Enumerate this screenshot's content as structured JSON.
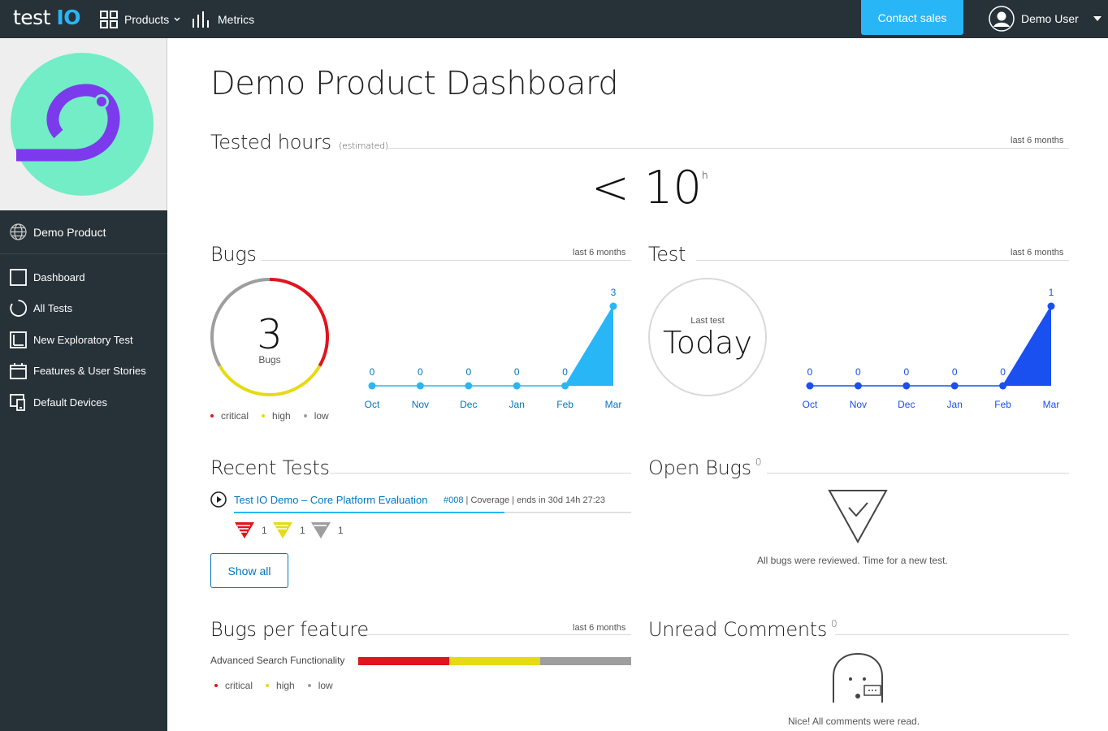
{
  "header": {
    "logo_text": "test",
    "logo_accent": "IO",
    "products_label": "Products",
    "metrics_label": "Metrics",
    "contact_label": "Contact sales",
    "user_name": "Demo User"
  },
  "sidebar": {
    "product_name": "Demo Product",
    "items": [
      {
        "label": "Dashboard",
        "icon": "square-icon"
      },
      {
        "label": "All Tests",
        "icon": "circle-icon"
      },
      {
        "label": "New Exploratory Test",
        "icon": "exploratory-icon"
      },
      {
        "label": "Features & User Stories",
        "icon": "calendar-icon"
      },
      {
        "label": "Default Devices",
        "icon": "devices-icon"
      }
    ]
  },
  "main": {
    "title": "Demo Product Dashboard",
    "tested_hours": {
      "title": "Tested hours",
      "subtitle": "(estimated)",
      "period": "last 6 months",
      "value": "< 10",
      "unit": "h"
    },
    "bugs": {
      "title": "Bugs",
      "period": "last 6 months",
      "total": "3",
      "total_label": "Bugs",
      "legend": [
        "critical",
        "high",
        "low"
      ]
    },
    "test": {
      "title": "Test",
      "period": "last 6 months",
      "last_test_label": "Last test",
      "last_test_value": "Today"
    },
    "recent_tests": {
      "title": "Recent Tests",
      "test_name": "Test IO Demo – Core Platform Evaluation",
      "test_id": "#008",
      "test_meta": " | Coverage | ends in 30d 14h 27:23",
      "progress": 0.68,
      "severity_counts": {
        "critical": "1",
        "high": "1",
        "low": "1"
      },
      "show_all_label": "Show all"
    },
    "open_bugs": {
      "title": "Open Bugs",
      "count": "0",
      "message": "All bugs were reviewed. Time for a new test."
    },
    "bugs_per_feature": {
      "title": "Bugs per feature",
      "period": "last 6 months",
      "feature": "Advanced Search Functionality",
      "legend": [
        "critical",
        "high",
        "low"
      ]
    },
    "unread_comments": {
      "title": "Unread Comments",
      "count": "0",
      "message": "Nice! All comments were read."
    }
  },
  "colors": {
    "critical": "#e0141e",
    "high": "#e5db12",
    "low": "#9e9e9e",
    "bugs_series": "#29b6f6",
    "test_series": "#1a4ff0",
    "nav_bg": "#263238",
    "accent": "#29b6f6"
  },
  "chart_data": [
    {
      "type": "area",
      "categories": [
        "Oct",
        "Nov",
        "Dec",
        "Jan",
        "Feb",
        "Mar"
      ],
      "values": [
        0,
        0,
        0,
        0,
        0,
        3
      ],
      "ylim": [
        0,
        3
      ]
    },
    {
      "type": "area",
      "categories": [
        "Oct",
        "Nov",
        "Dec",
        "Jan",
        "Feb",
        "Mar"
      ],
      "values": [
        0,
        0,
        0,
        0,
        0,
        1
      ],
      "ylim": [
        0,
        1
      ]
    },
    {
      "type": "pie",
      "categories": [
        "critical",
        "high",
        "low"
      ],
      "values": [
        1,
        1,
        1
      ]
    },
    {
      "type": "bar",
      "categories": [
        "Advanced Search Functionality"
      ],
      "series": [
        {
          "name": "critical",
          "values": [
            1
          ]
        },
        {
          "name": "high",
          "values": [
            1
          ]
        },
        {
          "name": "low",
          "values": [
            1
          ]
        }
      ]
    }
  ]
}
